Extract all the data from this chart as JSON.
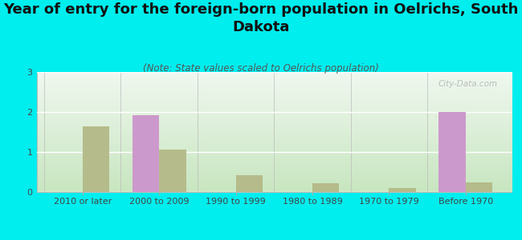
{
  "title": "Year of entry for the foreign-born population in Oelrichs, South\nDakota",
  "subtitle": "(Note: State values scaled to Oelrichs population)",
  "categories": [
    "2010 or later",
    "2000 to 2009",
    "1990 to 1999",
    "1980 to 1989",
    "1970 to 1979",
    "Before 1970"
  ],
  "oelrichs_values": [
    0,
    1.93,
    0,
    0,
    0,
    2.0
  ],
  "south_dakota_values": [
    1.65,
    1.07,
    0.42,
    0.22,
    0.1,
    0.25
  ],
  "oelrichs_color": "#cc99cc",
  "south_dakota_color": "#b5bb8a",
  "background_color": "#00eeee",
  "ylim": [
    0,
    3
  ],
  "yticks": [
    0,
    1,
    2,
    3
  ],
  "bar_width": 0.35,
  "title_fontsize": 13,
  "subtitle_fontsize": 8.5,
  "tick_fontsize": 8,
  "legend_fontsize": 9,
  "watermark": "City-Data.com",
  "grad_bottom": "#c8e6c0",
  "grad_top": "#f0f8f0"
}
